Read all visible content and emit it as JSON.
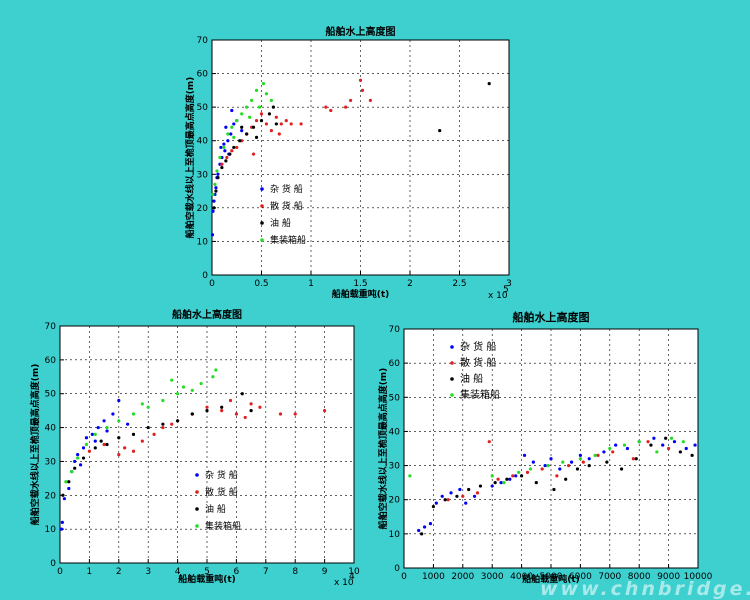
{
  "chart_data": [
    {
      "type": "scatter",
      "title": "船舶水上高度图",
      "xlabel": "船舶载重吨(t)",
      "ylabel": "船舶空载水线以上至桅顶最高点高度(m)",
      "x_multiplier": "x 10",
      "x_multiplier_exp": "5",
      "xlim": [
        0,
        3
      ],
      "ylim": [
        0,
        70
      ],
      "xticks": [
        "0",
        "0.5",
        "1",
        "1.5",
        "2",
        "2.5",
        "3"
      ],
      "yticks": [
        "0",
        "10",
        "20",
        "30",
        "40",
        "50",
        "60",
        "70"
      ],
      "grid": true,
      "legend_position": "middle-left",
      "series": [
        {
          "name": "杂 货 船",
          "color": "#0000ff",
          "points": [
            [
              0.005,
              12
            ],
            [
              0.01,
              19
            ],
            [
              0.02,
              22
            ],
            [
              0.04,
              26
            ],
            [
              0.06,
              30
            ],
            [
              0.08,
              33
            ],
            [
              0.1,
              35
            ],
            [
              0.13,
              37
            ],
            [
              0.16,
              40
            ],
            [
              0.19,
              42
            ],
            [
              0.22,
              45
            ],
            [
              0.09,
              38
            ],
            [
              0.14,
              44
            ],
            [
              0.2,
              49
            ],
            [
              0.25,
              46
            ],
            [
              0.3,
              43
            ],
            [
              0.03,
              24
            ],
            [
              0.05,
              29
            ],
            [
              0.12,
              39
            ],
            [
              0.17,
              36
            ]
          ]
        },
        {
          "name": "散 货 船",
          "color": "#e02020",
          "points": [
            [
              0.1,
              33
            ],
            [
              0.15,
              35
            ],
            [
              0.2,
              37
            ],
            [
              0.25,
              38
            ],
            [
              0.3,
              40
            ],
            [
              0.35,
              42
            ],
            [
              0.4,
              44
            ],
            [
              0.45,
              46
            ],
            [
              0.55,
              45
            ],
            [
              0.6,
              43
            ],
            [
              0.65,
              47
            ],
            [
              0.7,
              45
            ],
            [
              0.75,
              46
            ],
            [
              0.8,
              45
            ],
            [
              0.9,
              45
            ],
            [
              1.15,
              50
            ],
            [
              1.2,
              49
            ],
            [
              1.35,
              50
            ],
            [
              1.4,
              52
            ],
            [
              1.5,
              58
            ],
            [
              1.52,
              55
            ],
            [
              1.6,
              52
            ],
            [
              0.5,
              48
            ],
            [
              0.68,
              42
            ],
            [
              0.42,
              36
            ]
          ]
        },
        {
          "name": "油 船",
          "color": "#000000",
          "points": [
            [
              0.02,
              20
            ],
            [
              0.04,
              25
            ],
            [
              0.06,
              29
            ],
            [
              0.1,
              32
            ],
            [
              0.14,
              34
            ],
            [
              0.18,
              36
            ],
            [
              0.22,
              38
            ],
            [
              0.28,
              40
            ],
            [
              0.35,
              42
            ],
            [
              0.42,
              44
            ],
            [
              0.5,
              46
            ],
            [
              0.58,
              48
            ],
            [
              0.62,
              50
            ],
            [
              0.65,
              45
            ],
            [
              2.3,
              43
            ],
            [
              2.8,
              57
            ],
            [
              0.3,
              44
            ],
            [
              0.45,
              41
            ]
          ]
        },
        {
          "name": "集装箱船",
          "color": "#22dd22",
          "points": [
            [
              0.01,
              24
            ],
            [
              0.03,
              27
            ],
            [
              0.05,
              31
            ],
            [
              0.08,
              35
            ],
            [
              0.12,
              38
            ],
            [
              0.16,
              42
            ],
            [
              0.2,
              44
            ],
            [
              0.25,
              46
            ],
            [
              0.3,
              48
            ],
            [
              0.35,
              50
            ],
            [
              0.4,
              52
            ],
            [
              0.45,
              55
            ],
            [
              0.52,
              57
            ],
            [
              0.55,
              54
            ],
            [
              0.6,
              52
            ],
            [
              0.48,
              50
            ],
            [
              0.38,
              47
            ],
            [
              0.22,
              41
            ]
          ]
        }
      ]
    },
    {
      "type": "scatter",
      "title": "船舶水上高度图",
      "xlabel": "船舶载重吨(t)",
      "ylabel": "船舶空载水线以上至桅顶最高点高度(m)",
      "x_multiplier": "x 10",
      "x_multiplier_exp": "4",
      "xlim": [
        0,
        10
      ],
      "ylim": [
        0,
        70
      ],
      "xticks": [
        "0",
        "1",
        "2",
        "3",
        "4",
        "5",
        "6",
        "7",
        "8",
        "9",
        "10"
      ],
      "yticks": [
        "0",
        "10",
        "20",
        "30",
        "40",
        "50",
        "60",
        "70"
      ],
      "grid": true,
      "legend_position": "middle-center",
      "series": [
        {
          "name": "杂 货 船",
          "color": "#0000ff",
          "points": [
            [
              0.05,
              10
            ],
            [
              0.08,
              12
            ],
            [
              0.15,
              19
            ],
            [
              0.3,
              22
            ],
            [
              0.4,
              27
            ],
            [
              0.5,
              30
            ],
            [
              0.6,
              32
            ],
            [
              0.8,
              34
            ],
            [
              0.9,
              37
            ],
            [
              1.1,
              38
            ],
            [
              1.3,
              40
            ],
            [
              1.5,
              42
            ],
            [
              1.8,
              44
            ],
            [
              2.0,
              48
            ],
            [
              1.2,
              36
            ],
            [
              0.7,
              29
            ],
            [
              1.6,
              39
            ],
            [
              2.3,
              41
            ]
          ]
        },
        {
          "name": "散 货 船",
          "color": "#e02020",
          "points": [
            [
              1.0,
              33
            ],
            [
              1.5,
              35
            ],
            [
              2.0,
              32
            ],
            [
              2.5,
              33
            ],
            [
              2.8,
              36
            ],
            [
              3.2,
              38
            ],
            [
              3.5,
              40
            ],
            [
              4.0,
              42
            ],
            [
              4.5,
              44
            ],
            [
              5.0,
              46
            ],
            [
              5.5,
              45
            ],
            [
              6.0,
              44
            ],
            [
              6.3,
              43
            ],
            [
              6.5,
              47
            ],
            [
              6.8,
              46
            ],
            [
              7.5,
              44
            ],
            [
              8.0,
              44
            ],
            [
              9.0,
              45
            ],
            [
              2.2,
              34
            ],
            [
              3.8,
              41
            ],
            [
              5.8,
              48
            ]
          ]
        },
        {
          "name": "油 船",
          "color": "#000000",
          "points": [
            [
              0.1,
              20
            ],
            [
              0.3,
              24
            ],
            [
              0.5,
              28
            ],
            [
              0.8,
              31
            ],
            [
              1.2,
              34
            ],
            [
              1.6,
              35
            ],
            [
              2.0,
              37
            ],
            [
              2.5,
              38
            ],
            [
              3.0,
              40
            ],
            [
              3.5,
              41
            ],
            [
              4.0,
              42
            ],
            [
              4.5,
              44
            ],
            [
              5.0,
              45
            ],
            [
              5.5,
              46
            ],
            [
              6.2,
              50
            ],
            [
              6.5,
              45
            ],
            [
              1.4,
              36
            ]
          ]
        },
        {
          "name": "集装箱船",
          "color": "#22dd22",
          "points": [
            [
              0.2,
              24
            ],
            [
              0.4,
              27
            ],
            [
              0.6,
              31
            ],
            [
              0.9,
              35
            ],
            [
              1.2,
              38
            ],
            [
              1.6,
              40
            ],
            [
              2.0,
              42
            ],
            [
              2.5,
              44
            ],
            [
              3.0,
              46
            ],
            [
              3.5,
              48
            ],
            [
              4.0,
              50
            ],
            [
              4.2,
              52
            ],
            [
              4.8,
              53
            ],
            [
              5.2,
              55
            ],
            [
              5.3,
              57
            ],
            [
              3.8,
              54
            ],
            [
              2.8,
              47
            ],
            [
              4.5,
              51
            ]
          ]
        }
      ]
    },
    {
      "type": "scatter",
      "title": "船舶水上高度图",
      "xlabel": "船舶载重吨(t)",
      "ylabel": "船舶空载水线以上至桅顶最高点高度(m)",
      "xlim": [
        0,
        10000
      ],
      "ylim": [
        0,
        70
      ],
      "xticks": [
        "0",
        "1000",
        "2000",
        "3000",
        "4000",
        "5000",
        "6000",
        "7000",
        "8000",
        "9000",
        "10000"
      ],
      "yticks": [
        "0",
        "10",
        "20",
        "30",
        "40",
        "50",
        "60",
        "70"
      ],
      "grid": true,
      "legend_position": "top-left",
      "series": [
        {
          "name": "杂 货 船",
          "color": "#0000ff",
          "points": [
            [
              500,
              11
            ],
            [
              700,
              12
            ],
            [
              900,
              13
            ],
            [
              1100,
              19
            ],
            [
              1300,
              21
            ],
            [
              1600,
              22
            ],
            [
              1900,
              23
            ],
            [
              2100,
              19
            ],
            [
              2400,
              21
            ],
            [
              3000,
              24
            ],
            [
              3300,
              25
            ],
            [
              3600,
              26
            ],
            [
              3800,
              27
            ],
            [
              4100,
              33
            ],
            [
              4400,
              31
            ],
            [
              4800,
              30
            ],
            [
              5000,
              32
            ],
            [
              5300,
              29
            ],
            [
              5700,
              31
            ],
            [
              6000,
              33
            ],
            [
              6300,
              32
            ],
            [
              6800,
              34
            ],
            [
              7200,
              36
            ],
            [
              7600,
              35
            ],
            [
              8000,
              37
            ],
            [
              8500,
              38
            ],
            [
              8800,
              36
            ],
            [
              9200,
              37
            ],
            [
              9600,
              35
            ],
            [
              9900,
              36
            ]
          ]
        },
        {
          "name": "散 货 船",
          "color": "#e02020",
          "points": [
            [
              1500,
              20
            ],
            [
              2000,
              21
            ],
            [
              2500,
              22
            ],
            [
              2900,
              37
            ],
            [
              3200,
              26
            ],
            [
              3700,
              27
            ],
            [
              4200,
              28
            ],
            [
              4700,
              29
            ],
            [
              5200,
              27
            ],
            [
              5600,
              30
            ],
            [
              6100,
              31
            ],
            [
              6600,
              33
            ],
            [
              7100,
              34
            ],
            [
              7800,
              32
            ],
            [
              8300,
              37
            ],
            [
              9000,
              35
            ]
          ]
        },
        {
          "name": "油 船",
          "color": "#000000",
          "points": [
            [
              600,
              10
            ],
            [
              1000,
              18
            ],
            [
              1400,
              20
            ],
            [
              1800,
              21
            ],
            [
              2200,
              23
            ],
            [
              2600,
              24
            ],
            [
              3100,
              25
            ],
            [
              3500,
              26
            ],
            [
              4000,
              27
            ],
            [
              4500,
              25
            ],
            [
              5100,
              23
            ],
            [
              5500,
              26
            ],
            [
              5900,
              29
            ],
            [
              6300,
              30
            ],
            [
              6900,
              31
            ],
            [
              7400,
              29
            ],
            [
              7900,
              32
            ],
            [
              8400,
              36
            ],
            [
              8900,
              38
            ],
            [
              9400,
              34
            ],
            [
              9800,
              33
            ]
          ]
        },
        {
          "name": "集装箱船",
          "color": "#22dd22",
          "points": [
            [
              200,
              27
            ],
            [
              3000,
              27
            ],
            [
              3400,
              25
            ],
            [
              3900,
              28
            ],
            [
              4300,
              29
            ],
            [
              4900,
              30
            ],
            [
              5400,
              31
            ],
            [
              6000,
              32
            ],
            [
              6500,
              33
            ],
            [
              7000,
              35
            ],
            [
              7500,
              36
            ],
            [
              8000,
              37
            ],
            [
              8600,
              34
            ],
            [
              9100,
              38
            ],
            [
              9500,
              37
            ]
          ]
        }
      ]
    }
  ],
  "watermark": "www.chnbridge.cn"
}
